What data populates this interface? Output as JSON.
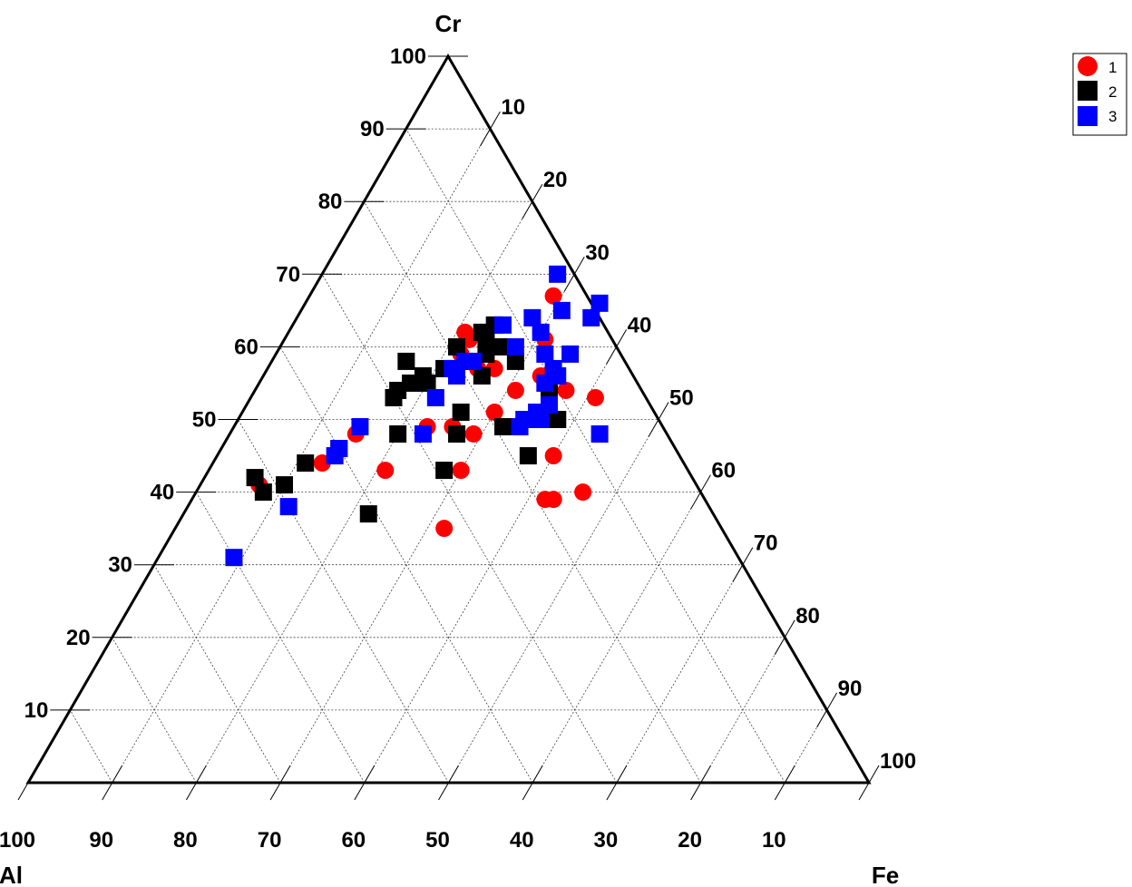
{
  "chart_data": {
    "type": "ternary-scatter",
    "vertices": {
      "top": "Cr",
      "left": "Al",
      "right": "Fe"
    },
    "ticks": [
      10,
      20,
      30,
      40,
      50,
      60,
      70,
      80,
      90,
      100
    ],
    "grid": true,
    "legend_position": "top-right",
    "series": [
      {
        "name": "1",
        "marker": "circle",
        "color": "#ff0000",
        "points": [
          {
            "Cr": 67,
            "Fe": 29
          },
          {
            "Cr": 62,
            "Fe": 30
          },
          {
            "Cr": 61,
            "Fe": 31
          },
          {
            "Cr": 62,
            "Fe": 21
          },
          {
            "Cr": 61,
            "Fe": 22
          },
          {
            "Cr": 59,
            "Fe": 22
          },
          {
            "Cr": 58,
            "Fe": 23
          },
          {
            "Cr": 57,
            "Fe": 25
          },
          {
            "Cr": 57,
            "Fe": 27
          },
          {
            "Cr": 56,
            "Fe": 33
          },
          {
            "Cr": 54,
            "Fe": 31
          },
          {
            "Cr": 54,
            "Fe": 37
          },
          {
            "Cr": 53,
            "Fe": 41
          },
          {
            "Cr": 52,
            "Fe": 36
          },
          {
            "Cr": 51,
            "Fe": 30
          },
          {
            "Cr": 50,
            "Fe": 34
          },
          {
            "Cr": 49,
            "Fe": 23
          },
          {
            "Cr": 49,
            "Fe": 26
          },
          {
            "Cr": 48,
            "Fe": 29
          },
          {
            "Cr": 48,
            "Fe": 15
          },
          {
            "Cr": 45,
            "Fe": 40
          },
          {
            "Cr": 44,
            "Fe": 13
          },
          {
            "Cr": 43,
            "Fe": 21
          },
          {
            "Cr": 43,
            "Fe": 30
          },
          {
            "Cr": 43,
            "Fe": 28
          },
          {
            "Cr": 41,
            "Fe": 7
          },
          {
            "Cr": 40,
            "Fe": 46
          },
          {
            "Cr": 39,
            "Fe": 43
          },
          {
            "Cr": 39,
            "Fe": 42
          },
          {
            "Cr": 35,
            "Fe": 32
          }
        ]
      },
      {
        "name": "2",
        "marker": "square",
        "color": "#000000",
        "points": [
          {
            "Cr": 63,
            "Fe": 24
          },
          {
            "Cr": 62,
            "Fe": 23
          },
          {
            "Cr": 61,
            "Fe": 24
          },
          {
            "Cr": 60,
            "Fe": 21
          },
          {
            "Cr": 60,
            "Fe": 26
          },
          {
            "Cr": 59,
            "Fe": 25
          },
          {
            "Cr": 58,
            "Fe": 16
          },
          {
            "Cr": 58,
            "Fe": 29
          },
          {
            "Cr": 57,
            "Fe": 21
          },
          {
            "Cr": 56,
            "Fe": 19
          },
          {
            "Cr": 56,
            "Fe": 26
          },
          {
            "Cr": 55,
            "Fe": 18
          },
          {
            "Cr": 55,
            "Fe": 20
          },
          {
            "Cr": 54,
            "Fe": 17
          },
          {
            "Cr": 54,
            "Fe": 35
          },
          {
            "Cr": 53,
            "Fe": 17
          },
          {
            "Cr": 51,
            "Fe": 26
          },
          {
            "Cr": 50,
            "Fe": 38
          },
          {
            "Cr": 49,
            "Fe": 32
          },
          {
            "Cr": 48,
            "Fe": 27
          },
          {
            "Cr": 48,
            "Fe": 20
          },
          {
            "Cr": 46,
            "Fe": 14
          },
          {
            "Cr": 45,
            "Fe": 37
          },
          {
            "Cr": 44,
            "Fe": 11
          },
          {
            "Cr": 43,
            "Fe": 28
          },
          {
            "Cr": 42,
            "Fe": 6
          },
          {
            "Cr": 41,
            "Fe": 10
          },
          {
            "Cr": 40,
            "Fe": 8
          },
          {
            "Cr": 37,
            "Fe": 22
          }
        ]
      },
      {
        "name": "3",
        "marker": "square",
        "color": "#0000ff",
        "points": [
          {
            "Cr": 70,
            "Fe": 28
          },
          {
            "Cr": 66,
            "Fe": 35
          },
          {
            "Cr": 65,
            "Fe": 31
          },
          {
            "Cr": 64,
            "Fe": 28
          },
          {
            "Cr": 64,
            "Fe": 35
          },
          {
            "Cr": 63,
            "Fe": 25
          },
          {
            "Cr": 62,
            "Fe": 30
          },
          {
            "Cr": 60,
            "Fe": 28
          },
          {
            "Cr": 59,
            "Fe": 32
          },
          {
            "Cr": 59,
            "Fe": 35
          },
          {
            "Cr": 58,
            "Fe": 23
          },
          {
            "Cr": 58,
            "Fe": 24
          },
          {
            "Cr": 57,
            "Fe": 34
          },
          {
            "Cr": 57,
            "Fe": 22
          },
          {
            "Cr": 56,
            "Fe": 23
          },
          {
            "Cr": 56,
            "Fe": 35
          },
          {
            "Cr": 55,
            "Fe": 34
          },
          {
            "Cr": 53,
            "Fe": 22
          },
          {
            "Cr": 52,
            "Fe": 36
          },
          {
            "Cr": 51,
            "Fe": 35
          },
          {
            "Cr": 50,
            "Fe": 36
          },
          {
            "Cr": 50,
            "Fe": 34
          },
          {
            "Cr": 49,
            "Fe": 15
          },
          {
            "Cr": 49,
            "Fe": 34
          },
          {
            "Cr": 48,
            "Fe": 23
          },
          {
            "Cr": 48,
            "Fe": 44
          },
          {
            "Cr": 46,
            "Fe": 14
          },
          {
            "Cr": 45,
            "Fe": 14
          },
          {
            "Cr": 38,
            "Fe": 12
          },
          {
            "Cr": 31,
            "Fe": 9
          }
        ]
      }
    ]
  }
}
